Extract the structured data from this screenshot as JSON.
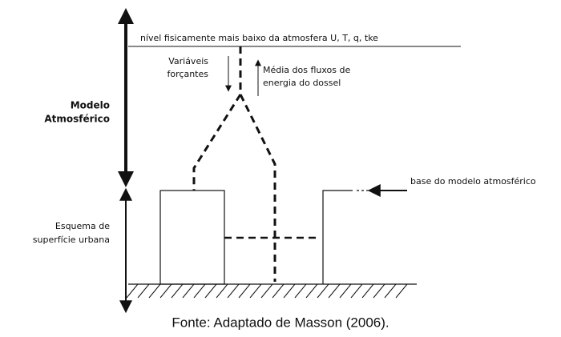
{
  "diagram": {
    "top_level_label": "nível fisicamente mais baixo da atmosfera  U, T, q, tke",
    "forcing_label": [
      "Variáveis",
      "forçantes"
    ],
    "flux_label": [
      "Média dos fluxos de",
      "energia do dossel"
    ],
    "atmospheric_model_label": [
      "Modelo",
      "Atmosférico"
    ],
    "base_label": "base do modelo atmosférico",
    "urban_scheme_label": [
      "Esquema de",
      "superfície urbana"
    ]
  },
  "caption": "Fonte: Adaptado de Masson (2006)."
}
